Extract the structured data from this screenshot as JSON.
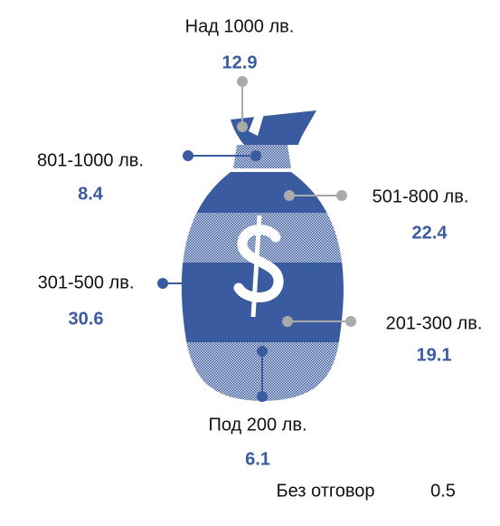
{
  "chart_data": {
    "type": "pictogram",
    "categories": [
      "Над 1000 лв.",
      "801-1000 лв.",
      "501-800 лв.",
      "301-500 лв.",
      "201-300 лв.",
      "Под 200 лв.",
      "Без отговор"
    ],
    "values": [
      12.9,
      8.4,
      22.4,
      30.6,
      19.1,
      6.1,
      0.5
    ],
    "colors": [
      "#aaaaaa",
      "#3a5ba0",
      "#aaaaaa",
      "#3a5ba0",
      "#aaaaaa",
      "#3a5ba0",
      "#3a5ba0"
    ],
    "color": "#3a5ba0"
  }
}
